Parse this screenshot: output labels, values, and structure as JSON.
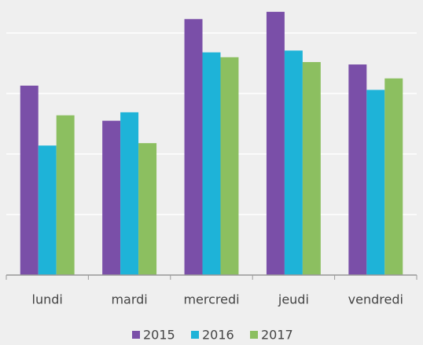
{
  "chart_data": {
    "type": "bar",
    "categories": [
      "lundi",
      "mardi",
      "mercredi",
      "jeudi",
      "vendredi"
    ],
    "series": [
      {
        "name": "2015",
        "color": "#7a4fa8",
        "values": [
          3.13,
          2.55,
          4.23,
          4.35,
          3.48
        ]
      },
      {
        "name": "2016",
        "color": "#1eb3d8",
        "values": [
          2.14,
          2.69,
          3.68,
          3.71,
          3.06
        ]
      },
      {
        "name": "2017",
        "color": "#8cbf60",
        "values": [
          2.64,
          2.18,
          3.6,
          3.52,
          3.25
        ]
      }
    ],
    "ylim": [
      0,
      4.4
    ],
    "yticks": [
      0,
      1,
      2,
      3,
      4
    ],
    "grid": true,
    "legend": "bottom"
  }
}
